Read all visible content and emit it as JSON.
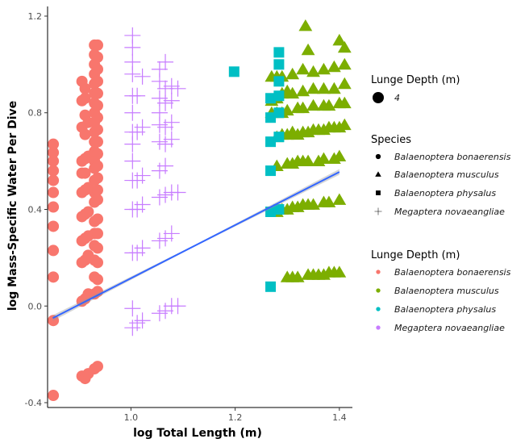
{
  "chart_data": {
    "type": "scatter",
    "xlabel": "log Total Length (m)",
    "ylabel": "log Mass-Specific Water Per Dive",
    "xlim": [
      0.84,
      1.425
    ],
    "ylim": [
      -0.42,
      1.24
    ],
    "x_ticks": [
      1.0,
      1.2,
      1.4
    ],
    "x_tick_labels": [
      "1.0",
      "1.2",
      "1.4"
    ],
    "y_ticks": [
      -0.4,
      0.0,
      0.4,
      0.8,
      1.2
    ],
    "y_tick_labels": [
      "-0.4",
      "0.0",
      "0.4",
      "0.8",
      "1.2"
    ],
    "grid": false,
    "legend_position": "right",
    "colors": {
      "Balaenoptera bonaerensis": "#F8766D",
      "Balaenoptera musculus": "#7CAE00",
      "Balaenoptera physalus": "#00BFC4",
      "Megaptera novaeangliae": "#C77CFF",
      "fit_line": "#3366FF",
      "fit_band": "#999999"
    },
    "legends": [
      {
        "title": "Lunge Depth (m)",
        "kind": "size",
        "entries": [
          {
            "label": "4",
            "symbol": "circle"
          }
        ]
      },
      {
        "title": "Species",
        "kind": "shape",
        "entries": [
          {
            "label": "Balaenoptera bonaerensis",
            "symbol": "circle"
          },
          {
            "label": "Balaenoptera musculus",
            "symbol": "triangle"
          },
          {
            "label": "Balaenoptera physalus",
            "symbol": "square"
          },
          {
            "label": "Megaptera novaeangliae",
            "symbol": "plus"
          }
        ]
      },
      {
        "title": "Lunge Depth (m)",
        "kind": "color",
        "entries": [
          {
            "label": "Balaenoptera bonaerensis",
            "symbol": "circle"
          },
          {
            "label": "Balaenoptera musculus",
            "symbol": "circle"
          },
          {
            "label": "Balaenoptera physalus",
            "symbol": "circle"
          },
          {
            "label": "Megaptera novaeangliae",
            "symbol": "circle"
          }
        ]
      }
    ],
    "fit_line": {
      "x": [
        0.85,
        1.4
      ],
      "y": [
        -0.05,
        0.555
      ],
      "band_halfwidth": [
        0.012,
        0.003,
        0.012
      ]
    },
    "series": [
      {
        "name": "Balaenoptera bonaerensis",
        "shape": "circle",
        "points": [
          [
            0.851,
            0.67
          ],
          [
            0.851,
            0.635
          ],
          [
            0.851,
            0.6
          ],
          [
            0.851,
            0.56
          ],
          [
            0.851,
            0.52
          ],
          [
            0.851,
            0.47
          ],
          [
            0.851,
            0.41
          ],
          [
            0.851,
            0.33
          ],
          [
            0.851,
            0.23
          ],
          [
            0.851,
            0.12
          ],
          [
            0.851,
            -0.06
          ],
          [
            0.851,
            -0.37
          ],
          [
            0.906,
            0.93
          ],
          [
            0.906,
            0.85
          ],
          [
            0.906,
            0.74
          ],
          [
            0.906,
            0.6
          ],
          [
            0.906,
            0.55
          ],
          [
            0.906,
            0.47
          ],
          [
            0.906,
            0.37
          ],
          [
            0.906,
            0.27
          ],
          [
            0.906,
            0.18
          ],
          [
            0.906,
            0.02
          ],
          [
            0.906,
            -0.29
          ],
          [
            0.912,
            0.9
          ],
          [
            0.912,
            0.86
          ],
          [
            0.912,
            0.79
          ],
          [
            0.912,
            0.71
          ],
          [
            0.912,
            0.61
          ],
          [
            0.912,
            0.55
          ],
          [
            0.912,
            0.48
          ],
          [
            0.912,
            0.38
          ],
          [
            0.912,
            0.28
          ],
          [
            0.912,
            0.19
          ],
          [
            0.912,
            0.03
          ],
          [
            0.912,
            -0.3
          ],
          [
            0.918,
            0.76
          ],
          [
            0.918,
            0.62
          ],
          [
            0.918,
            0.49
          ],
          [
            0.918,
            0.39
          ],
          [
            0.918,
            0.29
          ],
          [
            0.918,
            0.21
          ],
          [
            0.918,
            0.05
          ],
          [
            0.918,
            -0.28
          ],
          [
            0.93,
            1.08
          ],
          [
            0.93,
            1.04
          ],
          [
            0.93,
            1.0
          ],
          [
            0.93,
            0.96
          ],
          [
            0.93,
            0.92
          ],
          [
            0.93,
            0.88
          ],
          [
            0.93,
            0.84
          ],
          [
            0.93,
            0.8
          ],
          [
            0.93,
            0.76
          ],
          [
            0.93,
            0.72
          ],
          [
            0.93,
            0.68
          ],
          [
            0.93,
            0.64
          ],
          [
            0.93,
            0.6
          ],
          [
            0.93,
            0.57
          ],
          [
            0.93,
            0.52
          ],
          [
            0.93,
            0.47
          ],
          [
            0.93,
            0.43
          ],
          [
            0.93,
            0.35
          ],
          [
            0.93,
            0.3
          ],
          [
            0.93,
            0.25
          ],
          [
            0.93,
            0.19
          ],
          [
            0.93,
            0.12
          ],
          [
            0.93,
            0.05
          ],
          [
            0.93,
            -0.26
          ],
          [
            0.936,
            1.08
          ],
          [
            0.936,
            1.03
          ],
          [
            0.936,
            0.98
          ],
          [
            0.936,
            0.93
          ],
          [
            0.936,
            0.88
          ],
          [
            0.936,
            0.83
          ],
          [
            0.936,
            0.78
          ],
          [
            0.936,
            0.73
          ],
          [
            0.936,
            0.68
          ],
          [
            0.936,
            0.63
          ],
          [
            0.936,
            0.58
          ],
          [
            0.936,
            0.53
          ],
          [
            0.936,
            0.48
          ],
          [
            0.936,
            0.44
          ],
          [
            0.936,
            0.36
          ],
          [
            0.936,
            0.3
          ],
          [
            0.936,
            0.24
          ],
          [
            0.936,
            0.18
          ],
          [
            0.936,
            0.11
          ],
          [
            0.936,
            0.06
          ],
          [
            0.936,
            -0.25
          ]
        ]
      },
      {
        "name": "Balaenoptera musculus",
        "shape": "triangle",
        "points": [
          [
            1.335,
            1.16
          ],
          [
            1.34,
            1.06
          ],
          [
            1.4,
            1.1
          ],
          [
            1.41,
            1.07
          ],
          [
            1.27,
            0.95
          ],
          [
            1.28,
            0.95
          ],
          [
            1.29,
            0.95
          ],
          [
            1.31,
            0.96
          ],
          [
            1.33,
            0.98
          ],
          [
            1.35,
            0.97
          ],
          [
            1.37,
            0.98
          ],
          [
            1.39,
            0.99
          ],
          [
            1.41,
            1.0
          ],
          [
            1.27,
            0.85
          ],
          [
            1.28,
            0.86
          ],
          [
            1.29,
            0.88
          ],
          [
            1.3,
            0.89
          ],
          [
            1.31,
            0.88
          ],
          [
            1.33,
            0.89
          ],
          [
            1.35,
            0.9
          ],
          [
            1.37,
            0.9
          ],
          [
            1.39,
            0.9
          ],
          [
            1.41,
            0.92
          ],
          [
            1.27,
            0.8
          ],
          [
            1.28,
            0.8
          ],
          [
            1.29,
            0.8
          ],
          [
            1.3,
            0.81
          ],
          [
            1.32,
            0.82
          ],
          [
            1.33,
            0.82
          ],
          [
            1.35,
            0.83
          ],
          [
            1.37,
            0.83
          ],
          [
            1.38,
            0.83
          ],
          [
            1.4,
            0.84
          ],
          [
            1.41,
            0.84
          ],
          [
            1.28,
            0.7
          ],
          [
            1.29,
            0.71
          ],
          [
            1.3,
            0.71
          ],
          [
            1.31,
            0.72
          ],
          [
            1.32,
            0.71
          ],
          [
            1.33,
            0.72
          ],
          [
            1.34,
            0.72
          ],
          [
            1.35,
            0.73
          ],
          [
            1.36,
            0.73
          ],
          [
            1.37,
            0.73
          ],
          [
            1.38,
            0.74
          ],
          [
            1.39,
            0.74
          ],
          [
            1.4,
            0.74
          ],
          [
            1.41,
            0.75
          ],
          [
            1.28,
            0.58
          ],
          [
            1.3,
            0.59
          ],
          [
            1.31,
            0.59
          ],
          [
            1.32,
            0.6
          ],
          [
            1.33,
            0.6
          ],
          [
            1.34,
            0.6
          ],
          [
            1.36,
            0.6
          ],
          [
            1.37,
            0.61
          ],
          [
            1.39,
            0.61
          ],
          [
            1.4,
            0.62
          ],
          [
            1.28,
            0.39
          ],
          [
            1.29,
            0.4
          ],
          [
            1.3,
            0.4
          ],
          [
            1.31,
            0.41
          ],
          [
            1.32,
            0.41
          ],
          [
            1.33,
            0.42
          ],
          [
            1.34,
            0.42
          ],
          [
            1.35,
            0.42
          ],
          [
            1.37,
            0.43
          ],
          [
            1.38,
            0.43
          ],
          [
            1.4,
            0.44
          ],
          [
            1.3,
            0.12
          ],
          [
            1.31,
            0.12
          ],
          [
            1.32,
            0.12
          ],
          [
            1.34,
            0.13
          ],
          [
            1.35,
            0.13
          ],
          [
            1.36,
            0.13
          ],
          [
            1.37,
            0.13
          ],
          [
            1.38,
            0.14
          ],
          [
            1.39,
            0.14
          ],
          [
            1.4,
            0.14
          ]
        ]
      },
      {
        "name": "Balaenoptera physalus",
        "shape": "square",
        "points": [
          [
            1.198,
            0.97
          ],
          [
            1.268,
            0.86
          ],
          [
            1.268,
            0.78
          ],
          [
            1.268,
            0.68
          ],
          [
            1.268,
            0.56
          ],
          [
            1.268,
            0.39
          ],
          [
            1.268,
            0.08
          ],
          [
            1.284,
            1.05
          ],
          [
            1.284,
            1.0
          ],
          [
            1.284,
            0.93
          ],
          [
            1.284,
            0.87
          ],
          [
            1.284,
            0.8
          ],
          [
            1.284,
            0.7
          ],
          [
            1.284,
            0.4
          ]
        ]
      },
      {
        "name": "Megaptera novaeangliae",
        "shape": "plus",
        "points": [
          [
            1.003,
            1.12
          ],
          [
            1.003,
            1.07
          ],
          [
            1.003,
            1.01
          ],
          [
            1.003,
            0.96
          ],
          [
            1.003,
            0.87
          ],
          [
            1.003,
            0.8
          ],
          [
            1.003,
            0.72
          ],
          [
            1.003,
            0.67
          ],
          [
            1.003,
            0.6
          ],
          [
            1.003,
            0.52
          ],
          [
            1.003,
            0.4
          ],
          [
            1.003,
            0.22
          ],
          [
            1.003,
            -0.01
          ],
          [
            1.003,
            -0.09
          ],
          [
            1.012,
            0.87
          ],
          [
            1.012,
            0.72
          ],
          [
            1.012,
            0.52
          ],
          [
            1.012,
            0.4
          ],
          [
            1.012,
            0.22
          ],
          [
            1.012,
            -0.07
          ],
          [
            1.022,
            0.95
          ],
          [
            1.022,
            0.74
          ],
          [
            1.022,
            0.54
          ],
          [
            1.022,
            0.42
          ],
          [
            1.022,
            0.24
          ],
          [
            1.022,
            -0.06
          ],
          [
            1.055,
            0.98
          ],
          [
            1.055,
            0.93
          ],
          [
            1.055,
            0.86
          ],
          [
            1.055,
            0.8
          ],
          [
            1.055,
            0.75
          ],
          [
            1.055,
            0.68
          ],
          [
            1.055,
            0.56
          ],
          [
            1.055,
            0.45
          ],
          [
            1.055,
            0.27
          ],
          [
            1.055,
            -0.03
          ],
          [
            1.066,
            1.01
          ],
          [
            1.066,
            0.9
          ],
          [
            1.066,
            0.84
          ],
          [
            1.066,
            0.74
          ],
          [
            1.066,
            0.67
          ],
          [
            1.066,
            0.58
          ],
          [
            1.066,
            0.46
          ],
          [
            1.066,
            0.28
          ],
          [
            1.066,
            -0.02
          ],
          [
            1.078,
            0.91
          ],
          [
            1.078,
            0.85
          ],
          [
            1.078,
            0.76
          ],
          [
            1.078,
            0.69
          ],
          [
            1.078,
            0.47
          ],
          [
            1.078,
            0.3
          ],
          [
            1.078,
            0.0
          ],
          [
            1.09,
            0.9
          ],
          [
            1.09,
            0.47
          ],
          [
            1.09,
            0.0
          ]
        ]
      }
    ]
  }
}
